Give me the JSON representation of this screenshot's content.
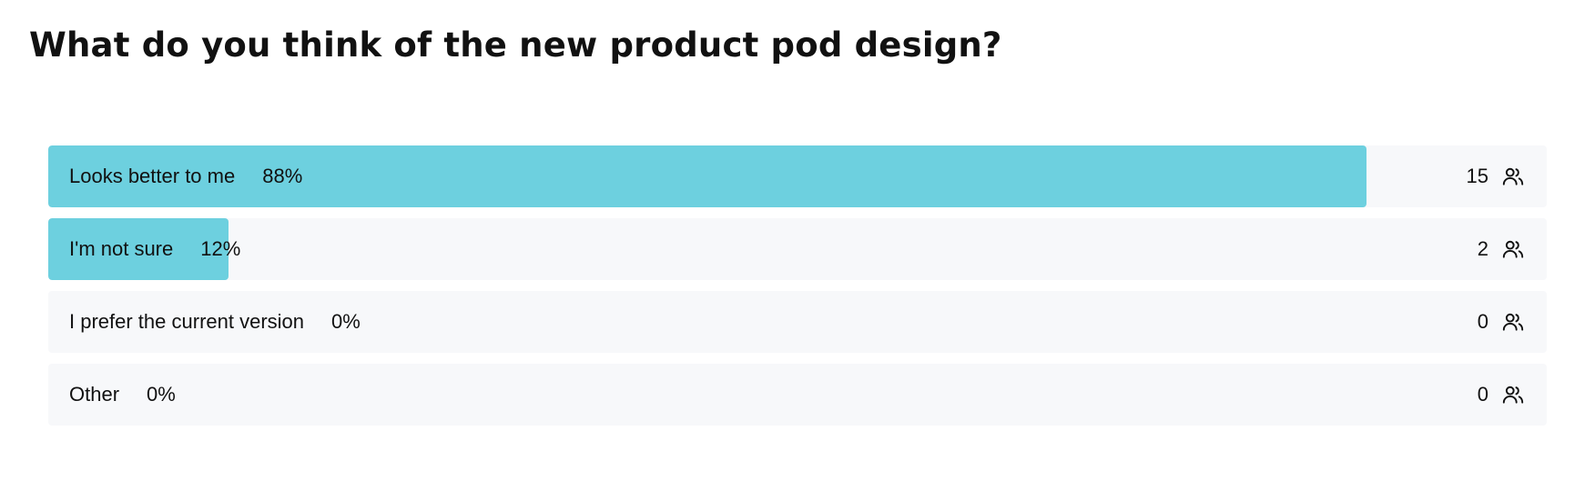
{
  "poll": {
    "question": "What do you think of the new product pod design?"
  },
  "chart_data": {
    "type": "bar",
    "orientation": "horizontal",
    "title": "What do you think of the new product pod design?",
    "categories": [
      "Looks better to me",
      "I'm not sure",
      "I prefer the current version",
      "Other"
    ],
    "percent_labels": [
      "88%",
      "12%",
      "0%",
      "0%"
    ],
    "percentages": [
      88,
      12,
      0,
      0
    ],
    "counts": [
      15,
      2,
      0,
      0
    ],
    "xlim": [
      0,
      100
    ],
    "grid": false,
    "legend": "none",
    "bar_color": "#6dd0df",
    "track_color": "#f7f8fa",
    "count_icon": "users-icon"
  }
}
